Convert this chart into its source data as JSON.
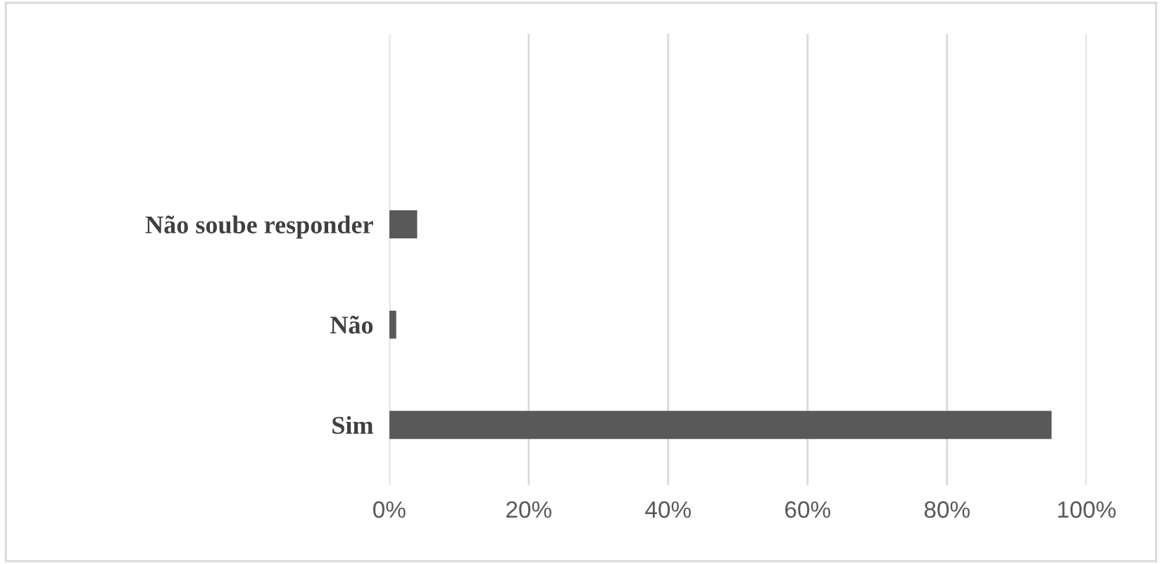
{
  "chart_data": {
    "type": "bar",
    "orientation": "horizontal",
    "categories": [
      "Não soube responder",
      "Não",
      "Sim"
    ],
    "values": [
      4,
      1,
      95
    ],
    "color": "#595959",
    "xlim": [
      0,
      100
    ],
    "xticks": [
      {
        "value": 0,
        "label": "0%"
      },
      {
        "value": 20,
        "label": "20%"
      },
      {
        "value": 40,
        "label": "40%"
      },
      {
        "value": 60,
        "label": "60%"
      },
      {
        "value": 80,
        "label": "80%"
      },
      {
        "value": 100,
        "label": "100%"
      }
    ],
    "grid": "x",
    "legend": false
  }
}
